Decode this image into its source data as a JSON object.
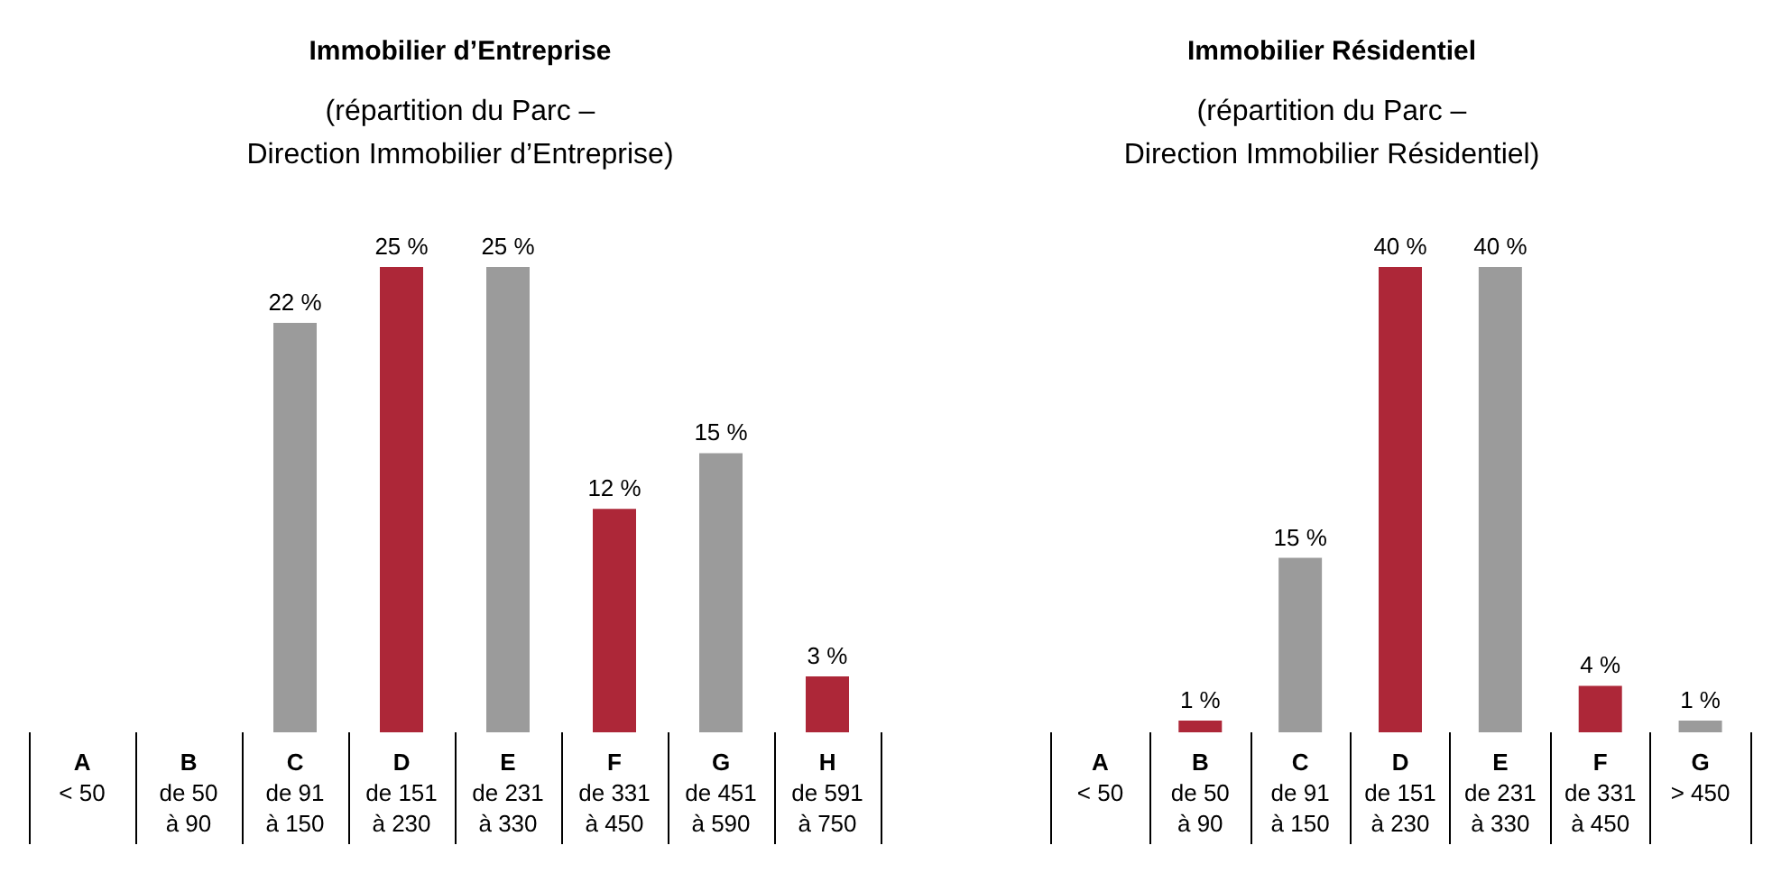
{
  "chart_data": [
    {
      "type": "bar",
      "title": "Immobilier d’Entreprise",
      "subtitle": "(répartition du Parc –\nDirection Immobilier d’Entreprise)",
      "categories": [
        "A\n< 50",
        "B\nde 50\nà 90",
        "C\nde 91\nà 150",
        "D\nde 151\nà 230",
        "E\nde 231\nà 330",
        "F\nde 331\nà 450",
        "G\nde 451\nà 590",
        "H\nde 591\nà 750"
      ],
      "values": [
        null,
        null,
        22,
        25,
        25,
        12,
        15,
        3
      ],
      "colors": [
        "#9b9b9b",
        "#9b9b9b",
        "#9b9b9b",
        "#ad2738",
        "#9b9b9b",
        "#ad2738",
        "#9b9b9b",
        "#ad2738"
      ],
      "value_labels": [
        null,
        null,
        "22 %",
        "25 %",
        "25 %",
        "12 %",
        "15 %",
        "3 %"
      ]
    },
    {
      "type": "bar",
      "title": "Immobilier Résidentiel",
      "subtitle": "(répartition du Parc –\nDirection Immobilier Résidentiel)",
      "categories": [
        "A\n< 50",
        "B\nde 50\nà 90",
        "C\nde 91\nà 150",
        "D\nde 151\nà 230",
        "E\nde 231\nà 330",
        "F\nde 331\nà 450",
        "G\n> 450"
      ],
      "values": [
        null,
        1,
        15,
        40,
        40,
        4,
        1
      ],
      "colors": [
        "#9b9b9b",
        "#ad2738",
        "#9b9b9b",
        "#ad2738",
        "#9b9b9b",
        "#ad2738",
        "#9b9b9b"
      ],
      "value_labels": [
        null,
        "1 %",
        "15 %",
        "40 %",
        "40 %",
        "4 %",
        "1 %"
      ]
    }
  ]
}
